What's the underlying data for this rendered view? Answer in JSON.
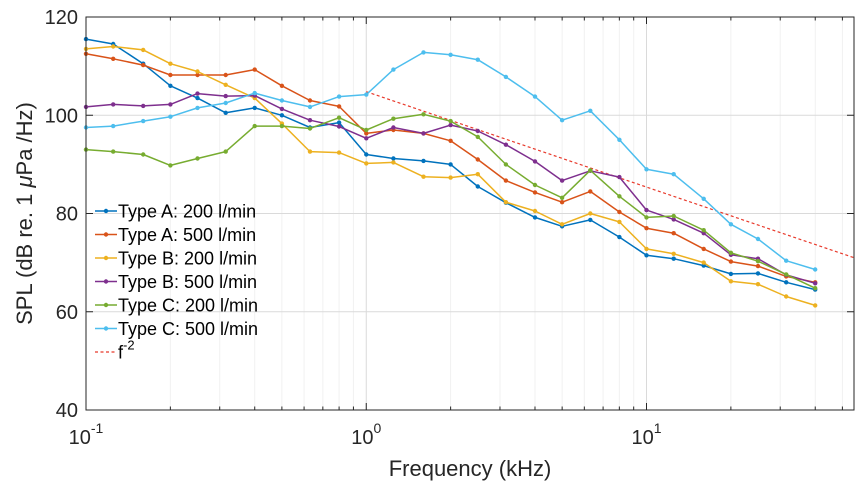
{
  "chart_data": {
    "type": "line",
    "xscale": "log",
    "xlabel": "Frequency (kHz)",
    "ylabel_parts": {
      "pre": "SPL (dB re. 1 ",
      "mu": "μ",
      "post": "Pa /Hz)"
    },
    "xlim": [
      0.1,
      55
    ],
    "ylim": [
      40,
      120
    ],
    "x_ticks": [
      {
        "value": 0.1,
        "base": "10",
        "exp": "-1"
      },
      {
        "value": 1,
        "base": "10",
        "exp": "0"
      },
      {
        "value": 10,
        "base": "10",
        "exp": "1"
      }
    ],
    "y_ticks": [
      {
        "value": 40,
        "label": "40"
      },
      {
        "value": 60,
        "label": "60"
      },
      {
        "value": 80,
        "label": "80"
      },
      {
        "value": 100,
        "label": "100"
      },
      {
        "value": 120,
        "label": "120"
      }
    ],
    "grid": true,
    "legend_position": "left",
    "x": [
      0.1,
      0.125,
      0.16,
      0.2,
      0.25,
      0.315,
      0.4,
      0.5,
      0.63,
      0.8,
      1,
      1.25,
      1.6,
      2,
      2.5,
      3.15,
      4,
      5,
      6.3,
      8,
      10,
      12.5,
      16,
      20,
      25,
      31.5,
      40
    ],
    "series": [
      {
        "name": "Type A: 200 l/min",
        "color": "#0072BD",
        "values": [
          115.5,
          114.5,
          110.5,
          106,
          103.5,
          100.5,
          101.5,
          100,
          97.5,
          98.5,
          92,
          91.2,
          90.7,
          90,
          85.5,
          82.2,
          79.2,
          77.4,
          78.7,
          75.2,
          71.5,
          70.8,
          69.4,
          67.7,
          67.8,
          66,
          64.5
        ]
      },
      {
        "name": "Type A: 500 l/min",
        "color": "#D95319",
        "values": [
          112.5,
          111.5,
          110.2,
          108.2,
          108.2,
          108.2,
          109.3,
          106,
          103,
          101.8,
          96.3,
          97,
          96.3,
          94.8,
          91,
          86.7,
          84.3,
          82.3,
          84.5,
          80.3,
          77,
          76,
          72.8,
          70.2,
          69.3,
          67.2,
          66
        ]
      },
      {
        "name": "Type B: 200 l/min",
        "color": "#EDB120",
        "values": [
          113.5,
          114,
          113.3,
          110.5,
          108.9,
          106.2,
          103.5,
          98.3,
          92.6,
          92.4,
          90.2,
          90.4,
          87.5,
          87.3,
          88,
          82.3,
          80.5,
          77.8,
          80,
          78.3,
          72.8,
          71.8,
          70,
          66.2,
          65.6,
          63.1,
          61.3
        ]
      },
      {
        "name": "Type B: 500 l/min",
        "color": "#7E2F8E",
        "values": [
          101.7,
          102.2,
          101.9,
          102.2,
          104.4,
          103.9,
          104,
          101.3,
          99,
          97.7,
          95.3,
          97.5,
          96.3,
          98,
          96.8,
          94,
          90.6,
          86.7,
          88.7,
          87.4,
          80.7,
          78.8,
          76,
          71.6,
          70.8,
          67.5,
          65.8
        ]
      },
      {
        "name": "Type C: 200 l/min",
        "color": "#77AC30",
        "values": [
          93,
          92.6,
          92,
          89.8,
          91.2,
          92.6,
          97.8,
          97.8,
          97.3,
          99.5,
          97,
          99.3,
          100.2,
          98.8,
          95.6,
          90,
          85.8,
          83.2,
          88.8,
          83.5,
          79.2,
          79.5,
          76.6,
          72,
          70.3,
          67.6,
          64.8
        ]
      },
      {
        "name": "Type C: 500 l/min",
        "color": "#4DBEEE",
        "values": [
          97.5,
          97.8,
          98.8,
          99.7,
          101.5,
          102.5,
          104.5,
          103,
          101.7,
          103.8,
          104.2,
          109.3,
          112.8,
          112.3,
          111.3,
          107.8,
          103.8,
          99,
          100.9,
          95,
          89,
          88,
          83,
          77.8,
          74.8,
          70.4,
          68.6
        ]
      }
    ],
    "reference": {
      "base": "f",
      "exp": "-2",
      "color": "#E8392B",
      "x": [
        1,
        55
      ],
      "values": [
        104.8,
        71
      ]
    }
  }
}
